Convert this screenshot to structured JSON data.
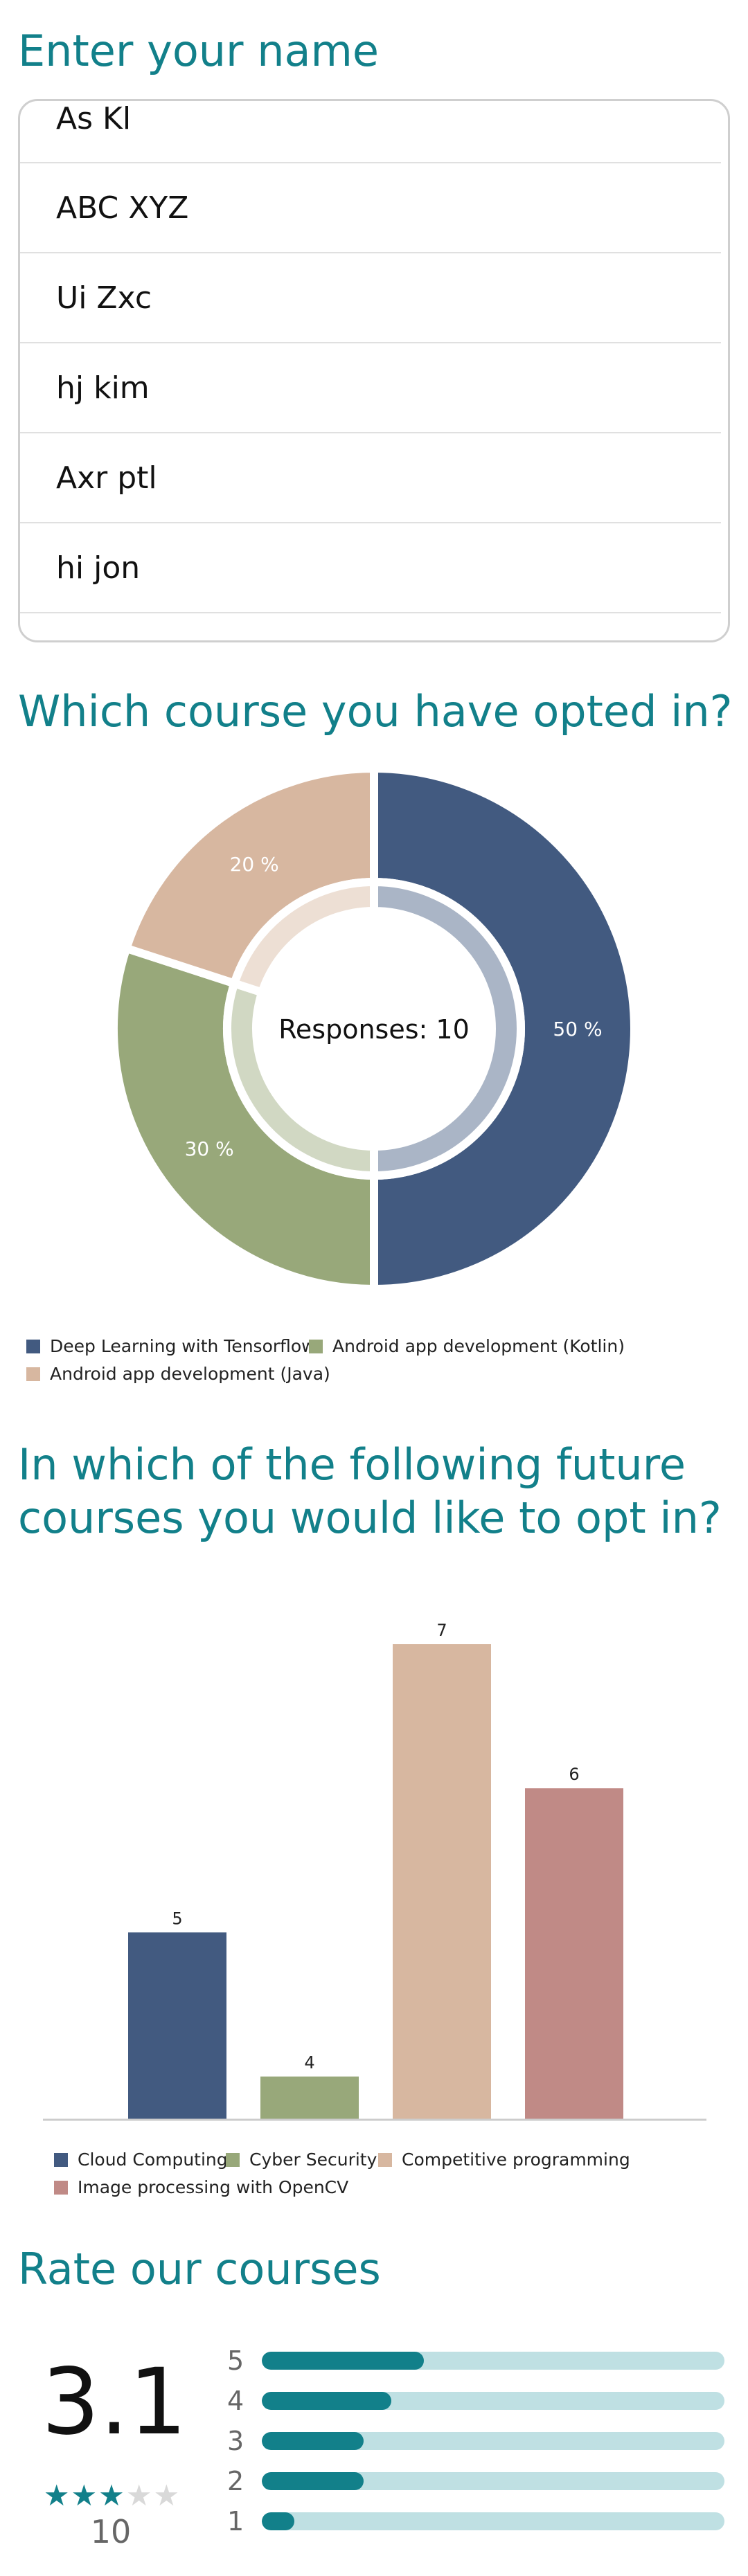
{
  "name_section": {
    "title": "Enter your name",
    "names": [
      "As Kl",
      "ABC XYZ",
      "Ui Zxc",
      "hj kim",
      "Axr ptl",
      "hi jon"
    ]
  },
  "course_section": {
    "title": "Which course you have opted in?",
    "center_label": "Responses: 10",
    "legend": [
      "Deep Learning with Tensorflow",
      "Android app development (Kotlin)",
      "Android app development (Java)"
    ]
  },
  "future_section": {
    "title_line1": "In which of the following future",
    "title_line2": "courses you would like to opt in?",
    "legend": [
      "Cloud Computing",
      "Cyber Security",
      "Competitive programming",
      "Image processing with OpenCV"
    ]
  },
  "rating_section": {
    "title": "Rate our courses",
    "average": "3.1",
    "count": "10",
    "stars_filled": 3,
    "stars_total": 5,
    "levels": [
      {
        "label": "5",
        "fraction": 0.35
      },
      {
        "label": "4",
        "fraction": 0.28
      },
      {
        "label": "3",
        "fraction": 0.22
      },
      {
        "label": "2",
        "fraction": 0.22
      },
      {
        "label": "1",
        "fraction": 0.07
      }
    ]
  },
  "chart_data": [
    {
      "type": "pie",
      "title": "",
      "categories": [
        "Deep Learning with Tensorflow",
        "Android app development (Kotlin)",
        "Android app development (Java)"
      ],
      "values": [
        50,
        30,
        20
      ],
      "value_labels": [
        "50 %",
        "30 %",
        "20 %"
      ],
      "colors": [
        "#425a80",
        "#98a87a",
        "#d7b7a0"
      ],
      "donut": true,
      "legend_placement": "bottom"
    },
    {
      "type": "bar",
      "title": "",
      "categories": [
        "Cloud Computing",
        "Cyber Security",
        "Competitive programming",
        "Image processing with OpenCV"
      ],
      "values": [
        5,
        4,
        7,
        6
      ],
      "value_labels": [
        "5",
        "4",
        "7",
        "6"
      ],
      "colors": [
        "#425a80",
        "#98a87a",
        "#d7b7a0",
        "#c08a86"
      ],
      "ylim": [
        3.7,
        7
      ],
      "legend_placement": "bottom"
    }
  ]
}
